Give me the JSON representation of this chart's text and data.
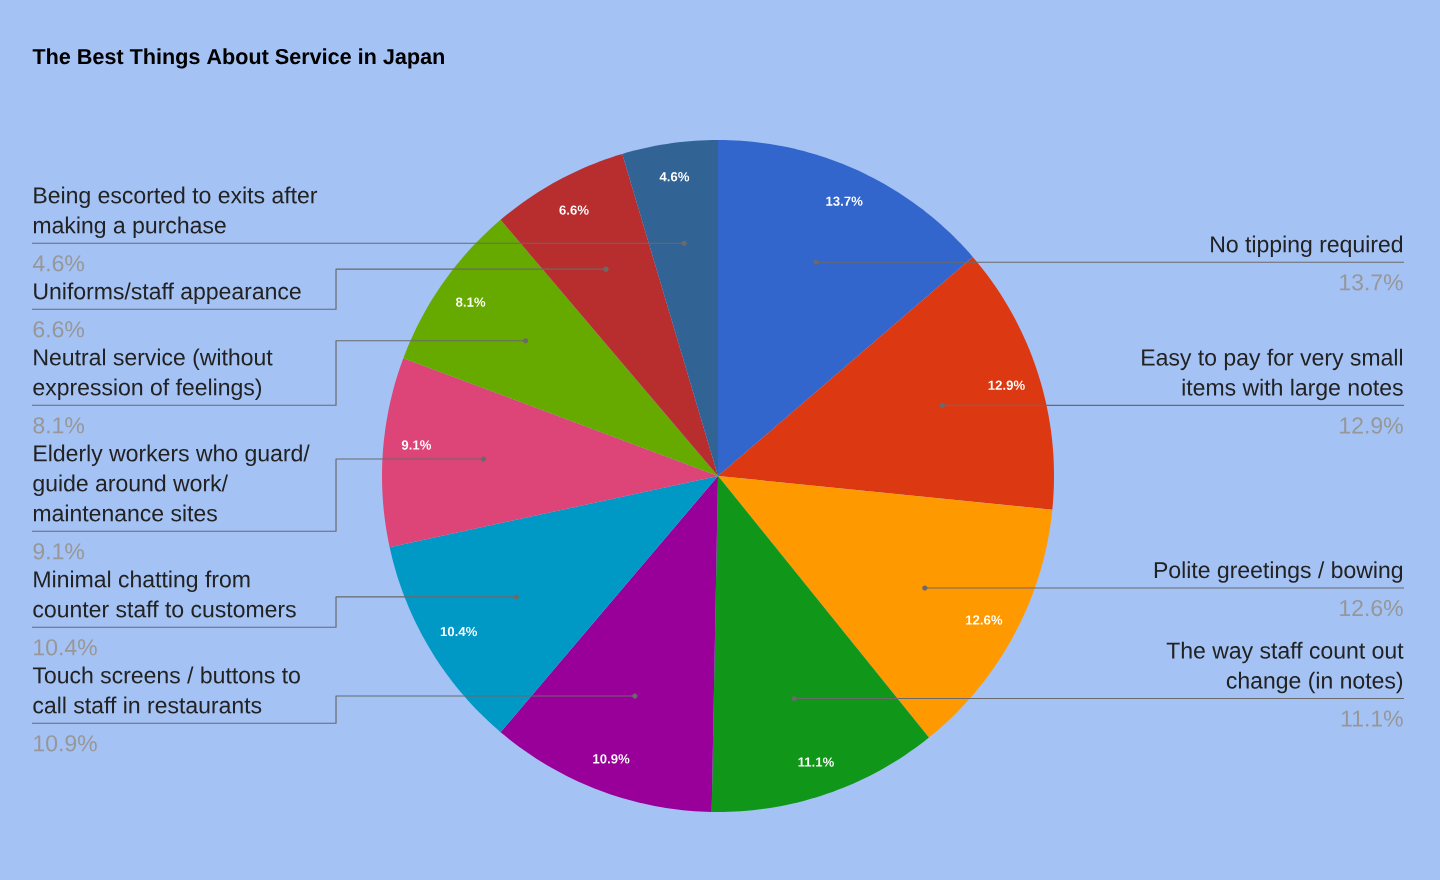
{
  "chart_data": {
    "type": "pie",
    "title": "The Best Things About Service in Japan",
    "categories": [
      "No tipping required",
      "Easy to pay for very small items with large notes",
      "Polite greetings / bowing",
      "The way staff count out change (in notes)",
      "Touch screens / buttons to call staff in restaurants",
      "Minimal chatting from counter staff to customers",
      "Elderly workers who guard/ guide around work/ maintenance sites",
      "Neutral service (without expression of feelings)",
      "Uniforms/staff appearance",
      "Being escorted to exits after making a purchase"
    ],
    "values": [
      13.7,
      12.9,
      12.6,
      11.1,
      10.9,
      10.4,
      9.1,
      8.1,
      6.6,
      4.6
    ],
    "colors": [
      "#3366cc",
      "#dc3912",
      "#ff9900",
      "#109618",
      "#990099",
      "#0099c6",
      "#dd4477",
      "#66aa00",
      "#b82e2e",
      "#316395"
    ],
    "value_labels": [
      "13.7%",
      "12.9%",
      "12.6%",
      "11.1%",
      "10.9%",
      "10.4%",
      "9.1%",
      "8.1%",
      "6.6%",
      "4.6%"
    ]
  }
}
